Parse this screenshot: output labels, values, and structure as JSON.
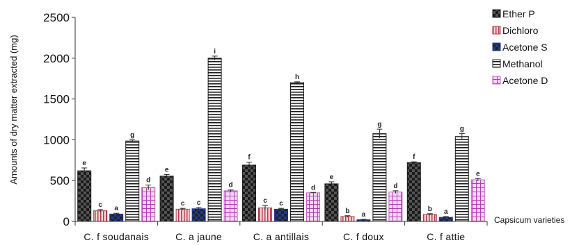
{
  "chart_data": {
    "type": "bar",
    "title": "",
    "xlabel": "Capsicum varieties",
    "ylabel": "Amounts of dry matter extracted (mg)",
    "ylim": [
      0,
      2500
    ],
    "yticks": [
      0,
      500,
      1000,
      1500,
      2000,
      2500
    ],
    "grid": false,
    "legend_position": "right",
    "categories": [
      "C. f soudanais",
      "C. a jaune",
      "C. a antillais",
      "C. f doux",
      "C. f attie"
    ],
    "series": [
      {
        "name": "Ether P",
        "pattern": "checker",
        "color": "#1a1a1a",
        "values": [
          620,
          555,
          690,
          460,
          720
        ],
        "errors": [
          35,
          20,
          35,
          25,
          10
        ],
        "letters": [
          "e",
          "e",
          "f",
          "e",
          "f"
        ]
      },
      {
        "name": "Dichloro",
        "pattern": "vstripe",
        "color": "#b03a4a",
        "values": [
          130,
          150,
          165,
          60,
          85
        ],
        "errors": [
          15,
          10,
          30,
          10,
          10
        ],
        "letters": [
          "c",
          "c",
          "c",
          "b",
          "b"
        ]
      },
      {
        "name": "Acetone S",
        "pattern": "checker-blue",
        "color": "#1f3a8f",
        "values": [
          90,
          155,
          150,
          20,
          50
        ],
        "errors": [
          10,
          15,
          10,
          5,
          10
        ],
        "letters": [
          "a",
          "c",
          "c",
          "a",
          "a"
        ]
      },
      {
        "name": "Methanol",
        "pattern": "hstripe",
        "color": "#1a1a1a",
        "values": [
          985,
          2000,
          1700,
          1075,
          1040
        ],
        "errors": [
          15,
          25,
          10,
          55,
          35
        ],
        "letters": [
          "g",
          "i",
          "h",
          "g",
          "g"
        ]
      },
      {
        "name": "Acetone D",
        "pattern": "grid-pink",
        "color": "#c060c0",
        "values": [
          415,
          375,
          350,
          360,
          510
        ],
        "errors": [
          30,
          10,
          5,
          15,
          15
        ],
        "letters": [
          "d",
          "d",
          "d",
          "d",
          "e"
        ]
      }
    ]
  }
}
